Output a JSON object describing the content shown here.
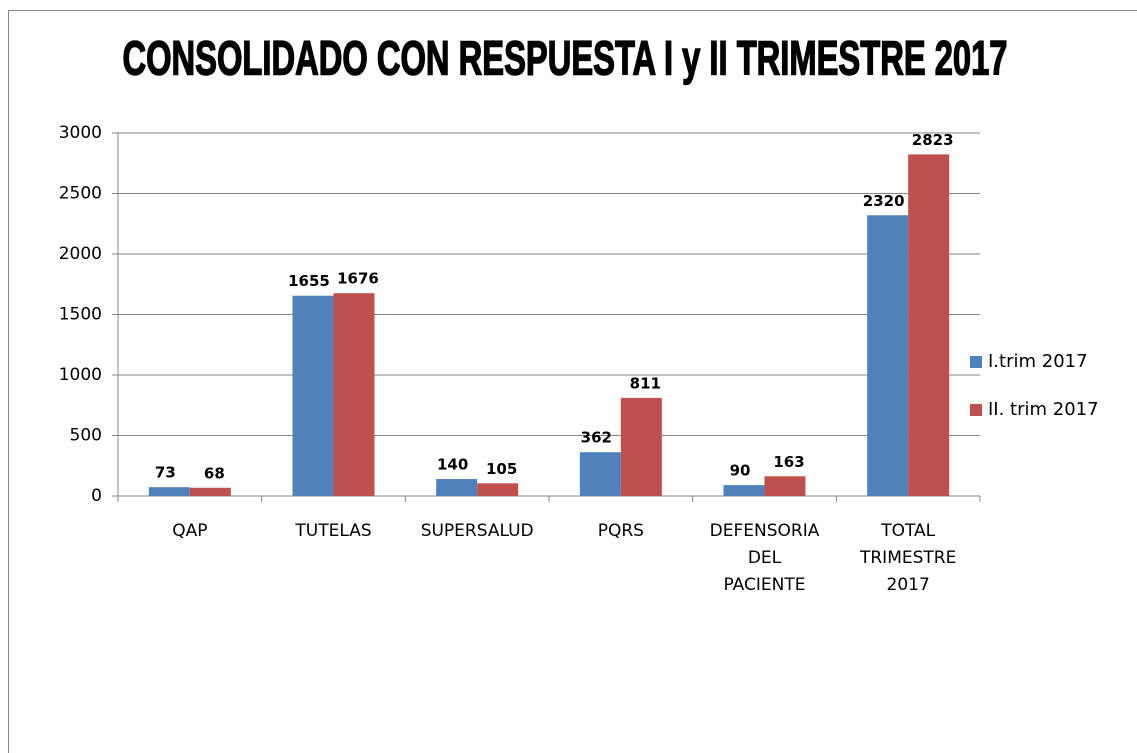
{
  "chart_data": {
    "type": "bar",
    "title": "CONSOLIDADO CON RESPUESTA I y II TRIMESTRE 2017",
    "categories": [
      "QAP",
      "TUTELAS",
      "SUPERSALUD",
      "PQRS",
      "DEFENSORIA DEL PACIENTE",
      "TOTAL TRIMESTRE 2017"
    ],
    "series": [
      {
        "name": "I.trim 2017",
        "color": "#4f81bd",
        "values": [
          73,
          1655,
          140,
          362,
          90,
          2320
        ]
      },
      {
        "name": "II. trim 2017",
        "color": "#c0504d",
        "values": [
          68,
          1676,
          105,
          811,
          163,
          2823
        ]
      }
    ],
    "ylim": [
      0,
      3000
    ],
    "yticks": [
      0,
      500,
      1000,
      1500,
      2000,
      2500,
      3000
    ],
    "grid": true,
    "legend": "right"
  }
}
